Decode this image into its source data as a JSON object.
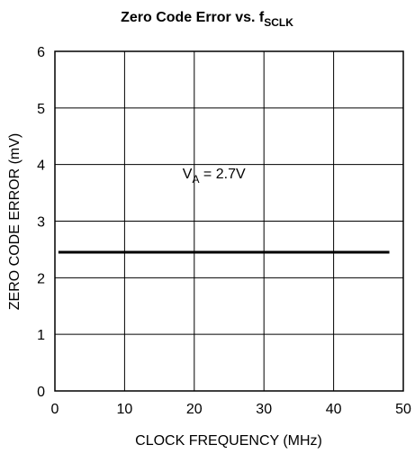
{
  "chart_data": {
    "type": "line",
    "title": {
      "main": "Zero Code Error vs. f",
      "sub": "SCLK"
    },
    "xlabel": "CLOCK FREQUENCY (MHz)",
    "ylabel": "ZERO CODE ERROR (mV)",
    "xlim": [
      0,
      50
    ],
    "ylim": [
      0,
      6
    ],
    "xticks": [
      0,
      10,
      20,
      30,
      40,
      50
    ],
    "yticks": [
      0,
      1,
      2,
      3,
      4,
      5,
      6
    ],
    "grid": true,
    "series": [
      {
        "x": [
          0.5,
          48
        ],
        "y": [
          2.45,
          2.45
        ]
      }
    ],
    "annotation": {
      "main": "V",
      "sub": "A",
      "rest": " = 2.7V",
      "x": 20,
      "y": 3.85
    }
  }
}
